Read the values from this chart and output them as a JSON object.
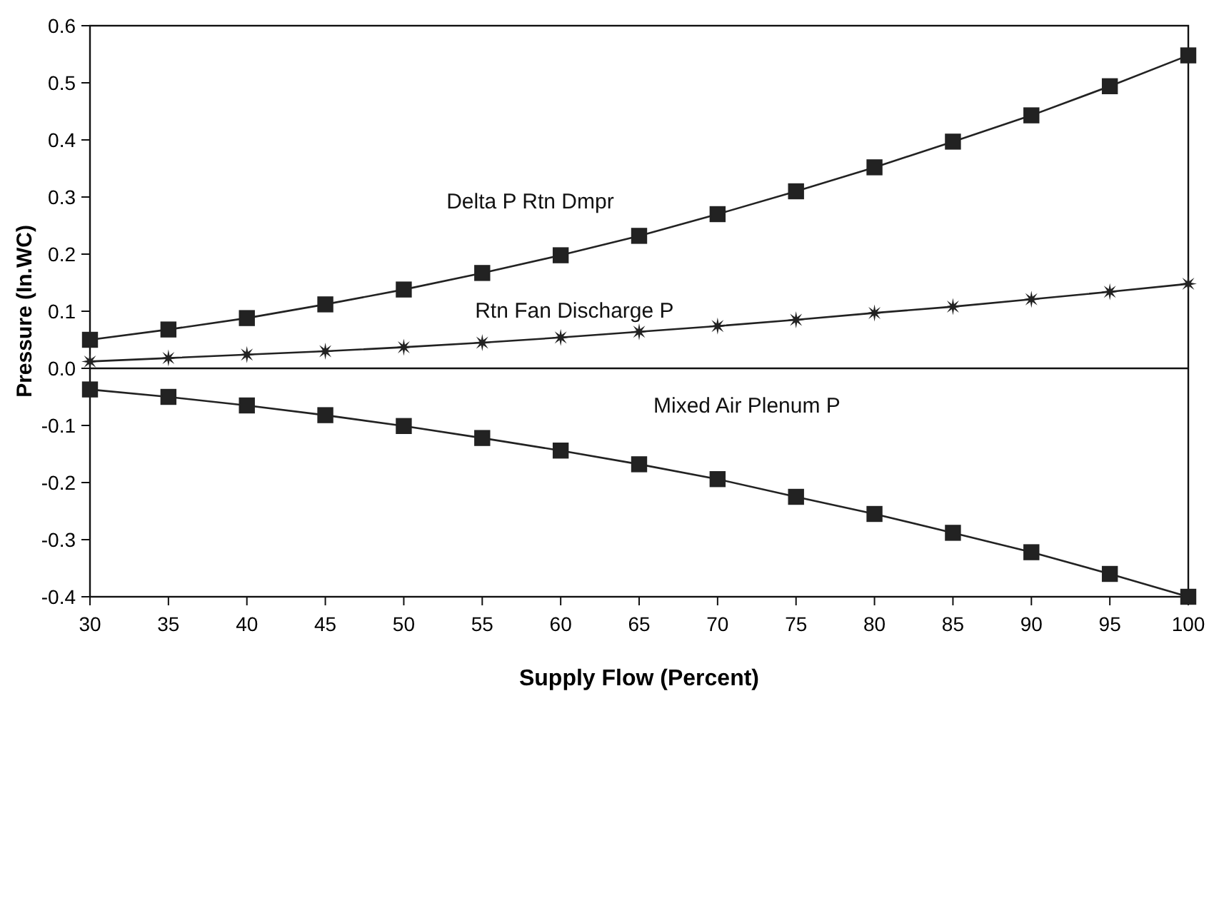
{
  "chart_data": {
    "type": "line",
    "xlabel": "Supply Flow (Percent)",
    "ylabel": "Pressure (In.WC)",
    "x": [
      30,
      35,
      40,
      45,
      50,
      55,
      60,
      65,
      70,
      75,
      80,
      85,
      90,
      95,
      100
    ],
    "series": [
      {
        "name": "Delta P Rtn Dmpr",
        "color": "#222222",
        "marker": "square",
        "values": [
          0.05,
          0.068,
          0.088,
          0.112,
          0.138,
          0.167,
          0.198,
          0.232,
          0.27,
          0.31,
          0.352,
          0.397,
          0.443,
          0.494,
          0.548
        ]
      },
      {
        "name": "Rtn Fan Discharge P",
        "color": "#222222",
        "marker": "star",
        "values": [
          0.012,
          0.018,
          0.024,
          0.03,
          0.037,
          0.045,
          0.054,
          0.064,
          0.074,
          0.085,
          0.097,
          0.108,
          0.121,
          0.134,
          0.148
        ]
      },
      {
        "name": "Mixed Air Plenum P",
        "color": "#222222",
        "marker": "square",
        "values": [
          -0.037,
          -0.05,
          -0.065,
          -0.082,
          -0.101,
          -0.122,
          -0.144,
          -0.168,
          -0.194,
          -0.225,
          -0.255,
          -0.288,
          -0.322,
          -0.36,
          -0.4
        ]
      }
    ],
    "xlim": [
      30,
      100
    ],
    "xticks": [
      30,
      35,
      40,
      45,
      50,
      55,
      60,
      65,
      70,
      75,
      80,
      85,
      90,
      95,
      100
    ],
    "ylim": [
      -0.4,
      0.6
    ],
    "yticks": [
      -0.4,
      -0.3,
      -0.2,
      -0.1,
      {
        "value": 0,
        "label": "0.0"
      },
      0.1,
      0.2,
      0.3,
      0.4,
      0.5,
      0.6
    ],
    "ref_lines": [
      {
        "axis": "y",
        "value": 0
      }
    ],
    "grid": false,
    "legend": false
  }
}
